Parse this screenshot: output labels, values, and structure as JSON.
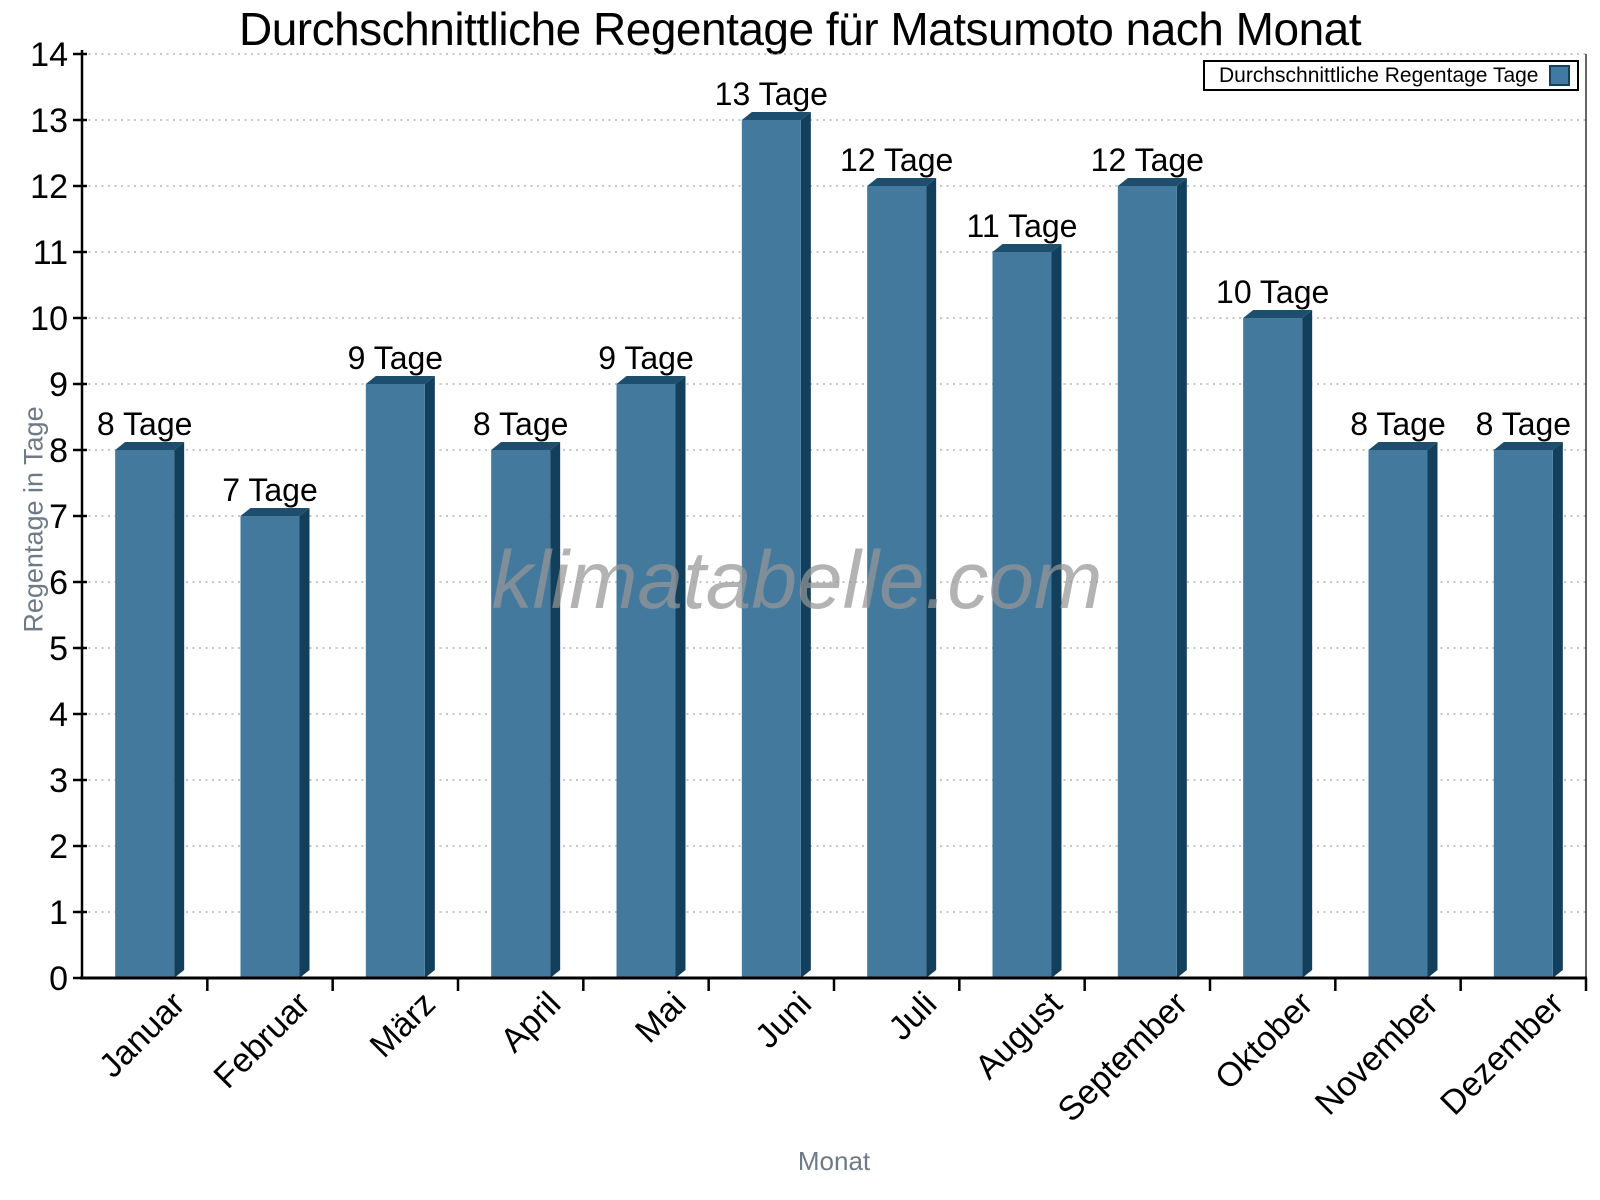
{
  "watermark": "klimatabelle.com",
  "chart_data": {
    "type": "bar",
    "title": "Durchschnittliche Regentage für Matsumoto nach Monat",
    "xlabel": "Monat",
    "ylabel": "Regentage in Tage",
    "legend_label": "Durchschnittliche Regentage Tage",
    "legend_position": "top-right",
    "categories": [
      "Januar",
      "Februar",
      "März",
      "April",
      "Mai",
      "Juni",
      "Juli",
      "August",
      "September",
      "Oktober",
      "November",
      "Dezember"
    ],
    "values": [
      8,
      7,
      9,
      8,
      9,
      13,
      12,
      11,
      12,
      10,
      8,
      8
    ],
    "bar_labels": [
      "8 Tage",
      "7 Tage",
      "9 Tage",
      "8 Tage",
      "9 Tage",
      "13 Tage",
      "12 Tage",
      "11 Tage",
      "12 Tage",
      "10 Tage",
      "8 Tage",
      "8 Tage"
    ],
    "ylim": [
      0,
      14
    ],
    "ytick_step": 1,
    "grid": "horizontal-dotted",
    "colors": {
      "bar_front": "#44799E",
      "bar_side": "#123F5C",
      "bar_top": "#1D4E6D",
      "legend_swatch": "#4179A2",
      "swatch_border": "#12415D",
      "grid": "#B3B3B3",
      "axis": "#000000",
      "axis_title": "#6E7A86",
      "watermark": "#969696"
    }
  }
}
